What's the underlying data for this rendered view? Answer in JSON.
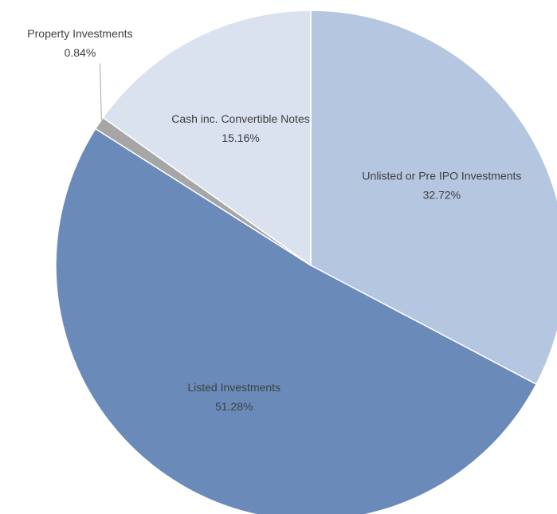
{
  "chart_data": {
    "type": "pie",
    "categories": [
      "Unlisted or Pre IPO Investments",
      "Listed Investments",
      "Property Investments",
      "Cash inc. Convertible Notes"
    ],
    "values": [
      32.72,
      51.28,
      0.84,
      15.16
    ],
    "value_labels": [
      "32.72%",
      "51.28%",
      "0.84%",
      "15.16%"
    ],
    "colors": [
      "#b4c6e0",
      "#6a8aba",
      "#a6a6a6",
      "#dae1ef"
    ]
  }
}
